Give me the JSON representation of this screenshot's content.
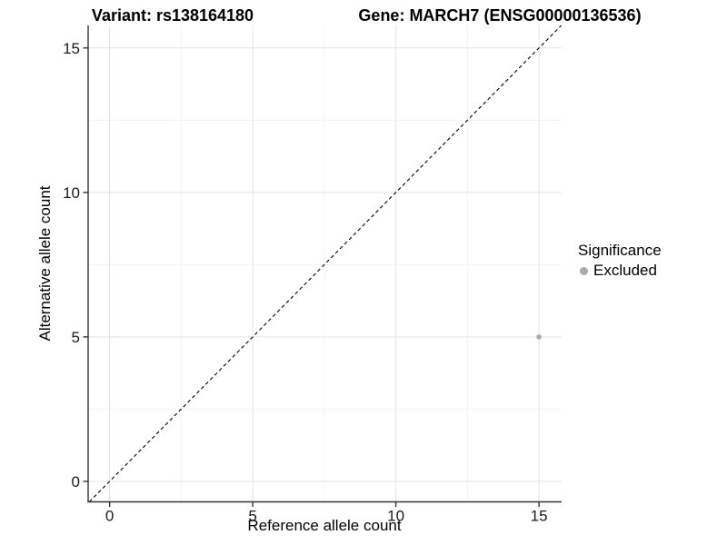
{
  "header": {
    "variant_title": "Variant: rs138164180",
    "gene_title": "Gene: MARCH7 (ENSG00000136536)"
  },
  "chart_data": {
    "type": "scatter",
    "xlabel": "Reference allele count",
    "ylabel": "Alternative allele count",
    "xlim": [
      -0.75,
      15.79
    ],
    "ylim": [
      -0.71,
      15.78
    ],
    "xticks": [
      0,
      5,
      10,
      15
    ],
    "yticks": [
      0,
      5,
      10,
      15
    ],
    "minor_xticks": [
      2.5,
      7.5,
      12.5
    ],
    "minor_yticks": [
      2.5,
      7.5,
      12.5
    ],
    "grid": "major+minor",
    "reference_line": {
      "kind": "identity y=x",
      "style": "dashed",
      "color": "#000000"
    },
    "series": [
      {
        "name": "Excluded",
        "color": "#a9a9a9",
        "points": [
          {
            "x": 15,
            "y": 5
          }
        ]
      }
    ],
    "legend": {
      "title": "Significance",
      "position": "right",
      "items": [
        {
          "label": "Excluded",
          "color": "#a9a9a9"
        }
      ]
    }
  },
  "style_colors": {
    "grid_major": "#e3e3e3",
    "grid_minor": "#f2f2f2",
    "axis_line": "#333333",
    "tick_label": "#1a1a1a"
  }
}
